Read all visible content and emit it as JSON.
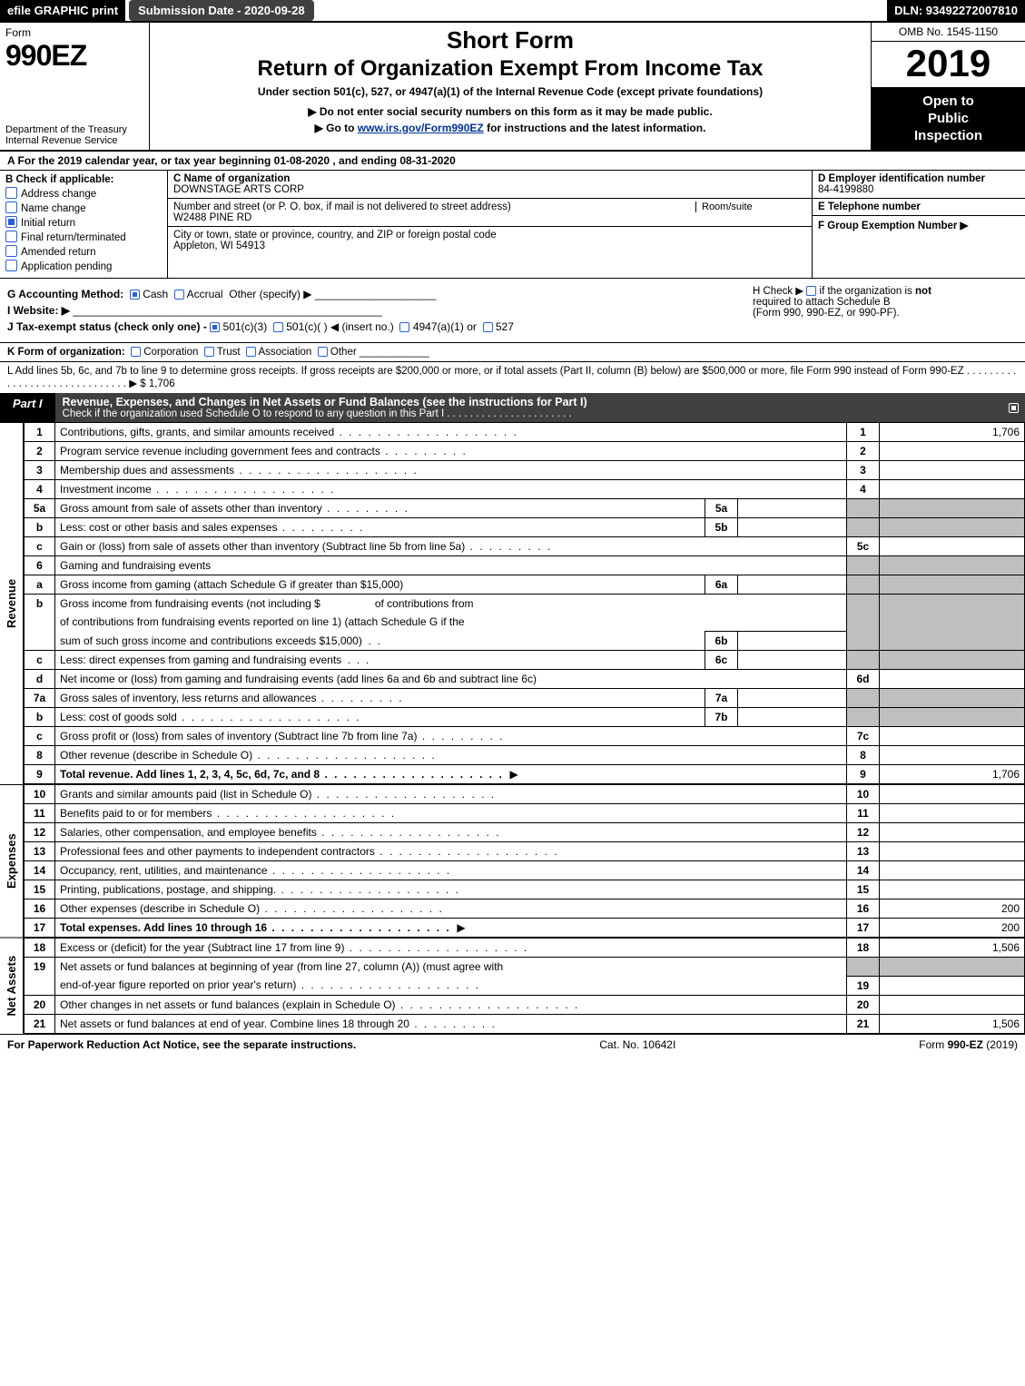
{
  "topbar": {
    "efile": "efile GRAPHIC print",
    "submission_label": "Submission Date - 2020-09-28",
    "dln": "DLN: 93492272007810"
  },
  "header": {
    "form_word": "Form",
    "form_number": "990EZ",
    "dept1": "Department of the Treasury",
    "dept2": "Internal Revenue Service",
    "short_form": "Short Form",
    "return_title": "Return of Organization Exempt From Income Tax",
    "under_section": "Under section 501(c), 527, or 4947(a)(1) of the Internal Revenue Code (except private foundations)",
    "do_not_enter": "▶ Do not enter social security numbers on this form as it may be made public.",
    "go_to_pre": "▶ Go to ",
    "go_to_link": "www.irs.gov/Form990EZ",
    "go_to_post": " for instructions and the latest information.",
    "omb": "OMB No. 1545-1150",
    "year": "2019",
    "open1": "Open to",
    "open2": "Public",
    "open3": "Inspection"
  },
  "row_a": {
    "text": "A  For the 2019 calendar year, or tax year beginning 01-08-2020 , and ending 08-31-2020"
  },
  "col_b": {
    "label": "B  Check if applicable:",
    "items": [
      {
        "label": "Address change",
        "checked": false
      },
      {
        "label": "Name change",
        "checked": false
      },
      {
        "label": "Initial return",
        "checked": true
      },
      {
        "label": "Final return/terminated",
        "checked": false
      },
      {
        "label": "Amended return",
        "checked": false
      },
      {
        "label": "Application pending",
        "checked": false
      }
    ]
  },
  "col_c": {
    "c_name_label": "C Name of organization",
    "org_name": "DOWNSTAGE ARTS CORP",
    "addr_label": "Number and street (or P. O. box, if mail is not delivered to street address)",
    "room_label": "Room/suite",
    "addr": "W2488 PINE RD",
    "city_label": "City or town, state or province, country, and ZIP or foreign postal code",
    "city": "Appleton, WI  54913"
  },
  "col_d": {
    "d_label": "D Employer identification number",
    "ein": "84-4199880",
    "e_label": "E Telephone number",
    "e_val": "",
    "f_label": "F Group Exemption Number   ▶",
    "f_val": ""
  },
  "g": {
    "label": "G Accounting Method:",
    "cash": "Cash",
    "accrual": "Accrual",
    "other": "Other (specify) ▶",
    "website_label": "I Website: ▶",
    "j_label": "J Tax-exempt status (check only one) - ",
    "j_501c3": "501(c)(3)",
    "j_501c": "501(c)(  ) ◀ (insert no.)",
    "j_4947": "4947(a)(1) or",
    "j_527": "527"
  },
  "h": {
    "text1": "H  Check ▶  ",
    "text2": " if the organization is ",
    "not": "not",
    "text3": " required to attach Schedule B",
    "text4": "(Form 990, 990-EZ, or 990-PF)."
  },
  "k": {
    "label": "K Form of organization:",
    "corp": "Corporation",
    "trust": "Trust",
    "assoc": "Association",
    "other": "Other"
  },
  "l": {
    "text": "L Add lines 5b, 6c, and 7b to line 9 to determine gross receipts. If gross receipts are $200,000 or more, or if total assets (Part II, column (B) below) are $500,000 or more, file Form 990 instead of Form 990-EZ  .  .  .  .  .  .  .  .  .  .  .  .  .  .  .  .  .  .  .  .  .  .  .  .  .  .  .  .  .  .  ▶  $ 1,706"
  },
  "part1": {
    "tab": "Part I",
    "title": "Revenue, Expenses, and Changes in Net Assets or Fund Balances (see the instructions for Part I)",
    "sub": "Check if the organization used Schedule O to respond to any question in this Part I  .  .  .  .  .  .  .  .  .  .  .  .  .  .  .  .  .  .  .  .  .  ."
  },
  "revenue_label": "Revenue",
  "expenses_label": "Expenses",
  "netassets_label": "Net Assets",
  "lines": {
    "l1": {
      "n": "1",
      "d": "Contributions, gifts, grants, and similar amounts received",
      "r": "1",
      "v": "1,706"
    },
    "l2": {
      "n": "2",
      "d": "Program service revenue including government fees and contracts",
      "r": "2",
      "v": ""
    },
    "l3": {
      "n": "3",
      "d": "Membership dues and assessments",
      "r": "3",
      "v": ""
    },
    "l4": {
      "n": "4",
      "d": "Investment income",
      "r": "4",
      "v": ""
    },
    "l5a": {
      "n": "5a",
      "d": "Gross amount from sale of assets other than inventory",
      "in": "5a",
      "iv": ""
    },
    "l5b": {
      "n": "b",
      "d": "Less: cost or other basis and sales expenses",
      "in": "5b",
      "iv": ""
    },
    "l5c": {
      "n": "c",
      "d": "Gain or (loss) from sale of assets other than inventory (Subtract line 5b from line 5a)",
      "r": "5c",
      "v": ""
    },
    "l6": {
      "n": "6",
      "d": "Gaming and fundraising events"
    },
    "l6a": {
      "n": "a",
      "d": "Gross income from gaming (attach Schedule G if greater than $15,000)",
      "in": "6a",
      "iv": ""
    },
    "l6b": {
      "n": "b",
      "d1": "Gross income from fundraising events (not including $",
      "d2": "of contributions from fundraising events reported on line 1) (attach Schedule G if the",
      "d3": "sum of such gross income and contributions exceeds $15,000)",
      "in": "6b",
      "iv": ""
    },
    "l6c": {
      "n": "c",
      "d": "Less: direct expenses from gaming and fundraising events",
      "in": "6c",
      "iv": ""
    },
    "l6d": {
      "n": "d",
      "d": "Net income or (loss) from gaming and fundraising events (add lines 6a and 6b and subtract line 6c)",
      "r": "6d",
      "v": ""
    },
    "l7a": {
      "n": "7a",
      "d": "Gross sales of inventory, less returns and allowances",
      "in": "7a",
      "iv": ""
    },
    "l7b": {
      "n": "b",
      "d": "Less: cost of goods sold",
      "in": "7b",
      "iv": ""
    },
    "l7c": {
      "n": "c",
      "d": "Gross profit or (loss) from sales of inventory (Subtract line 7b from line 7a)",
      "r": "7c",
      "v": ""
    },
    "l8": {
      "n": "8",
      "d": "Other revenue (describe in Schedule O)",
      "r": "8",
      "v": ""
    },
    "l9": {
      "n": "9",
      "d": "Total revenue. Add lines 1, 2, 3, 4, 5c, 6d, 7c, and 8",
      "r": "9",
      "v": "1,706",
      "bold": true
    },
    "l10": {
      "n": "10",
      "d": "Grants and similar amounts paid (list in Schedule O)",
      "r": "10",
      "v": ""
    },
    "l11": {
      "n": "11",
      "d": "Benefits paid to or for members",
      "r": "11",
      "v": ""
    },
    "l12": {
      "n": "12",
      "d": "Salaries, other compensation, and employee benefits",
      "r": "12",
      "v": ""
    },
    "l13": {
      "n": "13",
      "d": "Professional fees and other payments to independent contractors",
      "r": "13",
      "v": ""
    },
    "l14": {
      "n": "14",
      "d": "Occupancy, rent, utilities, and maintenance",
      "r": "14",
      "v": ""
    },
    "l15": {
      "n": "15",
      "d": "Printing, publications, postage, and shipping.",
      "r": "15",
      "v": ""
    },
    "l16": {
      "n": "16",
      "d": "Other expenses (describe in Schedule O)",
      "r": "16",
      "v": "200"
    },
    "l17": {
      "n": "17",
      "d": "Total expenses. Add lines 10 through 16",
      "r": "17",
      "v": "200",
      "bold": true
    },
    "l18": {
      "n": "18",
      "d": "Excess or (deficit) for the year (Subtract line 17 from line 9)",
      "r": "18",
      "v": "1,506"
    },
    "l19": {
      "n": "19",
      "d1": "Net assets or fund balances at beginning of year (from line 27, column (A)) (must agree with",
      "d2": "end-of-year figure reported on prior year's return)",
      "r": "19",
      "v": ""
    },
    "l20": {
      "n": "20",
      "d": "Other changes in net assets or fund balances (explain in Schedule O)",
      "r": "20",
      "v": ""
    },
    "l21": {
      "n": "21",
      "d": "Net assets or fund balances at end of year. Combine lines 18 through 20",
      "r": "21",
      "v": "1,506"
    }
  },
  "footer": {
    "left": "For Paperwork Reduction Act Notice, see the separate instructions.",
    "mid": "Cat. No. 10642I",
    "right_pre": "Form ",
    "right_bold": "990-EZ",
    "right_post": " (2019)"
  },
  "colors": {
    "black": "#000000",
    "darkgray": "#404040",
    "shade": "#bfbfbf",
    "blue": "#2b5fd9",
    "link": "#003399"
  }
}
